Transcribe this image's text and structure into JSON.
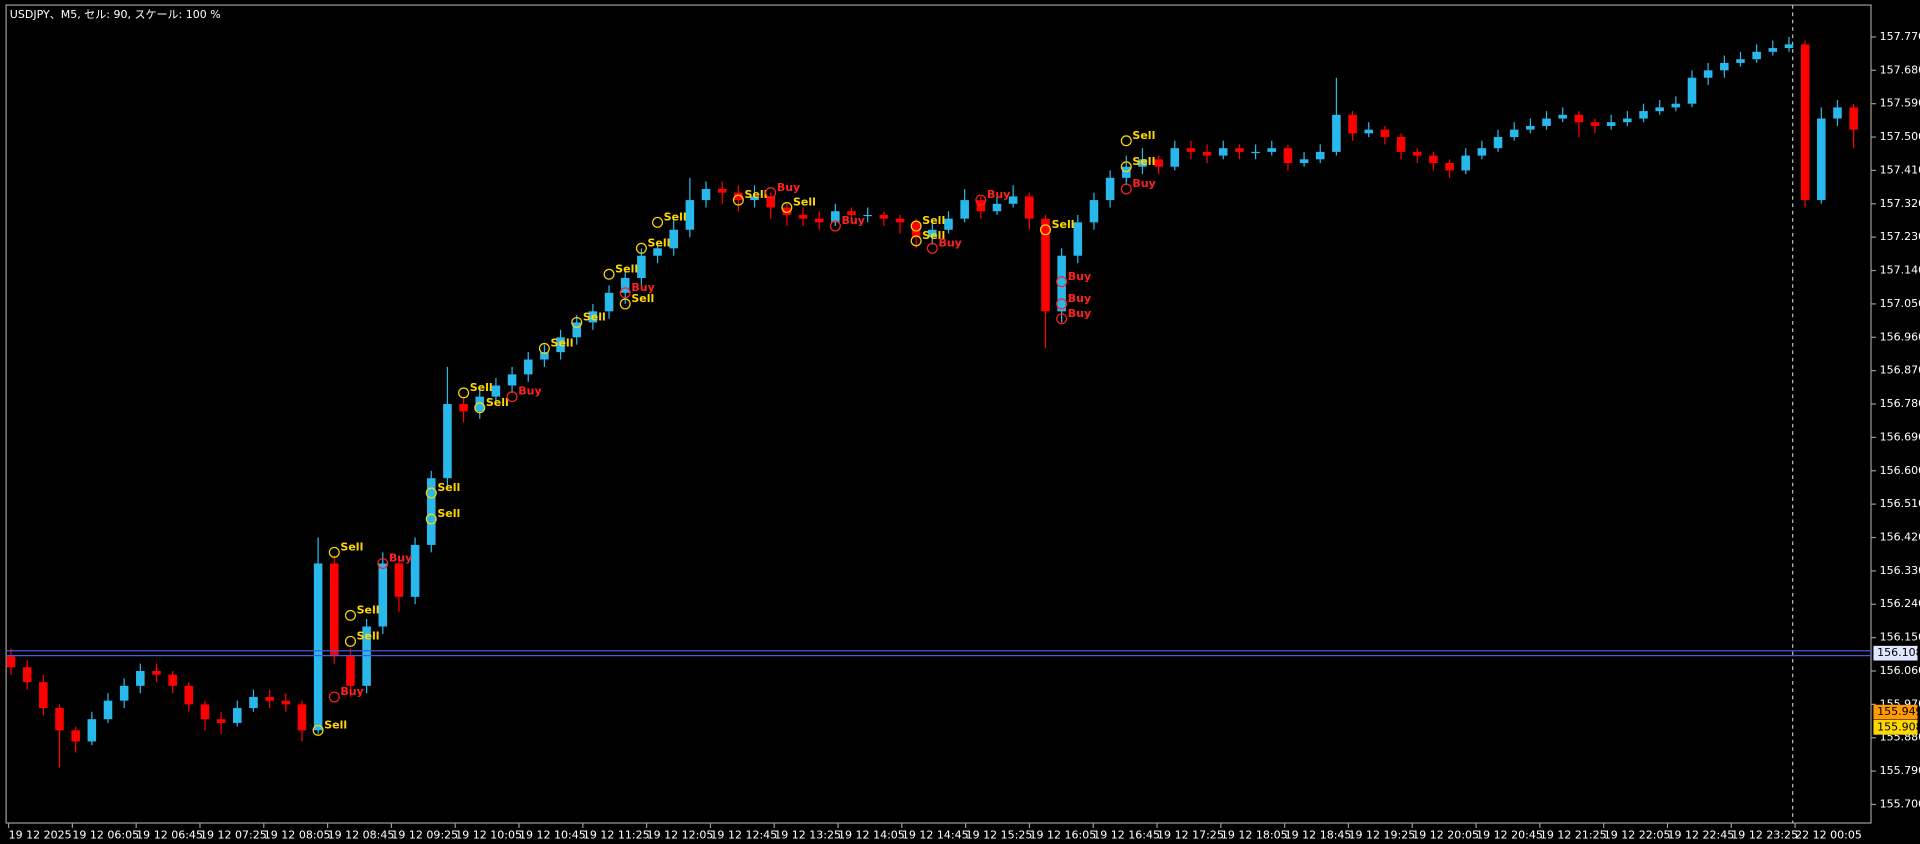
{
  "chart_data": {
    "type": "candlestick",
    "title": "USDJPY、M5, セル: 90, スケール: 100 %",
    "up_color": "#29b8ec",
    "down_color": "#ff0000",
    "ylim": [
      155.65,
      157.856
    ],
    "yticks": [
      {
        "value": 155.7,
        "label": "155.700"
      },
      {
        "value": 155.79,
        "label": "155.790"
      },
      {
        "value": 155.88,
        "label": "155.880"
      },
      {
        "value": 155.97,
        "label": "155.970"
      },
      {
        "value": 156.06,
        "label": "156.060"
      },
      {
        "value": 156.15,
        "label": "156.150"
      },
      {
        "value": 156.24,
        "label": "156.240"
      },
      {
        "value": 156.33,
        "label": "156.330"
      },
      {
        "value": 156.42,
        "label": "156.420"
      },
      {
        "value": 156.51,
        "label": "156.510"
      },
      {
        "value": 156.6,
        "label": "156.600"
      },
      {
        "value": 156.69,
        "label": "156.690"
      },
      {
        "value": 156.78,
        "label": "156.780"
      },
      {
        "value": 156.87,
        "label": "156.870"
      },
      {
        "value": 156.96,
        "label": "156.960"
      },
      {
        "value": 157.05,
        "label": "157.050"
      },
      {
        "value": 157.14,
        "label": "157.140"
      },
      {
        "value": 157.23,
        "label": "157.230"
      },
      {
        "value": 157.32,
        "label": "157.320"
      },
      {
        "value": 157.41,
        "label": "157.410"
      },
      {
        "value": 157.5,
        "label": "157.500"
      },
      {
        "value": 157.59,
        "label": "157.590"
      },
      {
        "value": 157.68,
        "label": "157.680"
      },
      {
        "value": 157.77,
        "label": "157.770"
      }
    ],
    "xlabels": [
      "19 12 2025",
      "19 12 06:05",
      "19 12 06:45",
      "19 12 07:25",
      "19 12 08:05",
      "19 12 08:45",
      "19 12 09:25",
      "19 12 10:05",
      "19 12 10:45",
      "19 12 11:25",
      "19 12 12:05",
      "19 12 12:45",
      "19 12 13:25",
      "19 12 14:05",
      "19 12 14:45",
      "19 12 15:25",
      "19 12 16:05",
      "19 12 16:45",
      "19 12 17:25",
      "19 12 18:05",
      "19 12 18:45",
      "19 12 19:25",
      "19 12 20:05",
      "19 12 20:45",
      "19 12 21:25",
      "19 12 22:05",
      "19 12 22:45",
      "19 12 23:25",
      "22 12 00:05"
    ],
    "markers": [
      {
        "value": 156.108,
        "color": "#dfe6ff"
      },
      {
        "value": 155.949,
        "color": "#ff9a00"
      },
      {
        "value": 155.908,
        "color": "#ffd700"
      }
    ],
    "ohlc": [
      [
        156.1,
        156.12,
        156.05,
        156.07
      ],
      [
        156.07,
        156.09,
        156.01,
        156.03
      ],
      [
        156.03,
        156.05,
        155.94,
        155.96
      ],
      [
        155.96,
        155.97,
        155.8,
        155.9
      ],
      [
        155.9,
        155.91,
        155.84,
        155.87
      ],
      [
        155.87,
        155.95,
        155.86,
        155.93
      ],
      [
        155.93,
        156.0,
        155.92,
        155.98
      ],
      [
        155.98,
        156.04,
        155.96,
        156.02
      ],
      [
        156.02,
        156.08,
        156.0,
        156.06
      ],
      [
        156.06,
        156.08,
        156.03,
        156.05
      ],
      [
        156.05,
        156.06,
        156.0,
        156.02
      ],
      [
        156.02,
        156.03,
        155.95,
        155.97
      ],
      [
        155.97,
        155.98,
        155.9,
        155.93
      ],
      [
        155.93,
        155.95,
        155.89,
        155.92
      ],
      [
        155.92,
        155.98,
        155.91,
        155.96
      ],
      [
        155.96,
        156.01,
        155.95,
        155.99
      ],
      [
        155.99,
        156.01,
        155.96,
        155.98
      ],
      [
        155.98,
        156.0,
        155.95,
        155.97
      ],
      [
        155.97,
        155.98,
        155.87,
        155.9
      ],
      [
        155.9,
        156.42,
        155.89,
        156.35
      ],
      [
        156.35,
        156.37,
        156.08,
        156.1
      ],
      [
        156.1,
        156.12,
        155.99,
        156.02
      ],
      [
        156.02,
        156.2,
        156.0,
        156.18
      ],
      [
        156.18,
        156.38,
        156.16,
        156.35
      ],
      [
        156.35,
        156.36,
        156.22,
        156.26
      ],
      [
        156.26,
        156.42,
        156.24,
        156.4
      ],
      [
        156.4,
        156.6,
        156.38,
        156.58
      ],
      [
        156.58,
        156.88,
        156.56,
        156.78
      ],
      [
        156.78,
        156.8,
        156.73,
        156.76
      ],
      [
        156.76,
        156.82,
        156.74,
        156.8
      ],
      [
        156.8,
        156.85,
        156.78,
        156.83
      ],
      [
        156.83,
        156.88,
        156.81,
        156.86
      ],
      [
        156.86,
        156.92,
        156.84,
        156.9
      ],
      [
        156.9,
        156.94,
        156.88,
        156.92
      ],
      [
        156.92,
        156.98,
        156.9,
        156.96
      ],
      [
        156.96,
        157.02,
        156.94,
        157.0
      ],
      [
        157.0,
        157.05,
        156.98,
        157.03
      ],
      [
        157.03,
        157.1,
        157.01,
        157.08
      ],
      [
        157.08,
        157.14,
        157.05,
        157.12
      ],
      [
        157.12,
        157.2,
        157.1,
        157.18
      ],
      [
        157.18,
        157.22,
        157.16,
        157.2
      ],
      [
        157.2,
        157.28,
        157.18,
        157.25
      ],
      [
        157.25,
        157.39,
        157.23,
        157.33
      ],
      [
        157.33,
        157.38,
        157.31,
        157.36
      ],
      [
        157.36,
        157.38,
        157.32,
        157.35
      ],
      [
        157.35,
        157.37,
        157.3,
        157.33
      ],
      [
        157.33,
        157.37,
        157.31,
        157.34
      ],
      [
        157.34,
        157.35,
        157.28,
        157.31
      ],
      [
        157.31,
        157.32,
        157.26,
        157.29
      ],
      [
        157.29,
        157.31,
        157.26,
        157.28
      ],
      [
        157.28,
        157.3,
        157.25,
        157.27
      ],
      [
        157.27,
        157.32,
        157.26,
        157.3
      ],
      [
        157.3,
        157.31,
        157.27,
        157.29
      ],
      [
        157.29,
        157.31,
        157.27,
        157.29
      ],
      [
        157.29,
        157.3,
        157.26,
        157.28
      ],
      [
        157.28,
        157.29,
        157.24,
        157.27
      ],
      [
        157.27,
        157.28,
        157.2,
        157.23
      ],
      [
        157.23,
        157.27,
        157.21,
        157.25
      ],
      [
        157.25,
        157.3,
        157.24,
        157.28
      ],
      [
        157.28,
        157.36,
        157.27,
        157.33
      ],
      [
        157.33,
        157.34,
        157.28,
        157.3
      ],
      [
        157.3,
        157.34,
        157.29,
        157.32
      ],
      [
        157.32,
        157.37,
        157.31,
        157.34
      ],
      [
        157.34,
        157.35,
        157.25,
        157.28
      ],
      [
        157.28,
        157.29,
        156.93,
        157.03
      ],
      [
        157.03,
        157.2,
        157.0,
        157.18
      ],
      [
        157.18,
        157.29,
        157.16,
        157.27
      ],
      [
        157.27,
        157.35,
        157.25,
        157.33
      ],
      [
        157.33,
        157.41,
        157.31,
        157.39
      ],
      [
        157.39,
        157.45,
        157.37,
        157.42
      ],
      [
        157.42,
        157.47,
        157.4,
        157.44
      ],
      [
        157.44,
        157.45,
        157.4,
        157.42
      ],
      [
        157.42,
        157.49,
        157.41,
        157.47
      ],
      [
        157.47,
        157.49,
        157.44,
        157.46
      ],
      [
        157.46,
        157.48,
        157.43,
        157.45
      ],
      [
        157.45,
        157.49,
        157.44,
        157.47
      ],
      [
        157.47,
        157.48,
        157.44,
        157.46
      ],
      [
        157.46,
        157.48,
        157.44,
        157.46
      ],
      [
        157.46,
        157.49,
        157.45,
        157.47
      ],
      [
        157.47,
        157.48,
        157.41,
        157.43
      ],
      [
        157.43,
        157.46,
        157.42,
        157.44
      ],
      [
        157.44,
        157.48,
        157.43,
        157.46
      ],
      [
        157.46,
        157.66,
        157.45,
        157.56
      ],
      [
        157.56,
        157.57,
        157.49,
        157.51
      ],
      [
        157.51,
        157.54,
        157.5,
        157.52
      ],
      [
        157.52,
        157.53,
        157.48,
        157.5
      ],
      [
        157.5,
        157.51,
        157.44,
        157.46
      ],
      [
        157.46,
        157.47,
        157.43,
        157.45
      ],
      [
        157.45,
        157.46,
        157.41,
        157.43
      ],
      [
        157.43,
        157.44,
        157.39,
        157.41
      ],
      [
        157.41,
        157.47,
        157.4,
        157.45
      ],
      [
        157.45,
        157.49,
        157.44,
        157.47
      ],
      [
        157.47,
        157.52,
        157.46,
        157.5
      ],
      [
        157.5,
        157.54,
        157.49,
        157.52
      ],
      [
        157.52,
        157.55,
        157.51,
        157.53
      ],
      [
        157.53,
        157.57,
        157.52,
        157.55
      ],
      [
        157.55,
        157.58,
        157.54,
        157.56
      ],
      [
        157.56,
        157.57,
        157.5,
        157.54
      ],
      [
        157.54,
        157.55,
        157.51,
        157.53
      ],
      [
        157.53,
        157.56,
        157.52,
        157.54
      ],
      [
        157.54,
        157.57,
        157.53,
        157.55
      ],
      [
        157.55,
        157.59,
        157.54,
        157.57
      ],
      [
        157.57,
        157.6,
        157.56,
        157.58
      ],
      [
        157.58,
        157.61,
        157.57,
        157.59
      ],
      [
        157.59,
        157.68,
        157.58,
        157.66
      ],
      [
        157.66,
        157.7,
        157.64,
        157.68
      ],
      [
        157.68,
        157.72,
        157.66,
        157.7
      ],
      [
        157.7,
        157.73,
        157.69,
        157.71
      ],
      [
        157.71,
        157.75,
        157.7,
        157.73
      ],
      [
        157.73,
        157.76,
        157.72,
        157.74
      ],
      [
        157.74,
        157.77,
        157.73,
        157.75
      ],
      [
        157.75,
        157.76,
        157.31,
        157.33
      ],
      [
        157.33,
        157.58,
        157.32,
        157.55
      ],
      [
        157.55,
        157.6,
        157.53,
        157.58
      ],
      [
        157.58,
        157.59,
        157.47,
        157.52
      ]
    ],
    "annotations": [
      {
        "text": "Sell",
        "candle": 19,
        "price": 155.9,
        "color": "#ffd700"
      },
      {
        "text": "Sell",
        "candle": 20,
        "price": 156.38,
        "color": "#ffd700"
      },
      {
        "text": "Sell",
        "candle": 21,
        "price": 156.21,
        "color": "#ffd700"
      },
      {
        "text": "Sell",
        "candle": 21,
        "price": 156.14,
        "color": "#ffd700"
      },
      {
        "text": "Buy",
        "candle": 20,
        "price": 155.99,
        "color": "#ff2020"
      },
      {
        "text": "Buy",
        "candle": 23,
        "price": 156.35,
        "color": "#ff2020"
      },
      {
        "text": "Sell",
        "candle": 26,
        "price": 156.54,
        "color": "#ffd700"
      },
      {
        "text": "Sell",
        "candle": 26,
        "price": 156.47,
        "color": "#ffd700"
      },
      {
        "text": "Sell",
        "candle": 28,
        "price": 156.81,
        "color": "#ffd700"
      },
      {
        "text": "Sell",
        "candle": 29,
        "price": 156.77,
        "color": "#ffd700"
      },
      {
        "text": "Buy",
        "candle": 31,
        "price": 156.8,
        "color": "#ff2020"
      },
      {
        "text": "Sell",
        "candle": 33,
        "price": 156.93,
        "color": "#ffd700"
      },
      {
        "text": "Sell",
        "candle": 35,
        "price": 157.0,
        "color": "#ffd700"
      },
      {
        "text": "Sell",
        "candle": 37,
        "price": 157.13,
        "color": "#ffd700"
      },
      {
        "text": "Buy",
        "candle": 38,
        "price": 157.08,
        "color": "#ff2020"
      },
      {
        "text": "Sell",
        "candle": 38,
        "price": 157.05,
        "color": "#ffd700"
      },
      {
        "text": "Sell",
        "candle": 40,
        "price": 157.27,
        "color": "#ffd700"
      },
      {
        "text": "Sell",
        "candle": 39,
        "price": 157.2,
        "color": "#ffd700"
      },
      {
        "text": "Sell",
        "candle": 45,
        "price": 157.33,
        "color": "#ffd700"
      },
      {
        "text": "Buy",
        "candle": 47,
        "price": 157.35,
        "color": "#ff2020"
      },
      {
        "text": "Sell",
        "candle": 48,
        "price": 157.31,
        "color": "#ffd700"
      },
      {
        "text": "Buy",
        "candle": 51,
        "price": 157.26,
        "color": "#ff2020"
      },
      {
        "text": "Sell",
        "candle": 56,
        "price": 157.26,
        "color": "#ffd700"
      },
      {
        "text": "Sell",
        "candle": 56,
        "price": 157.22,
        "color": "#ffd700"
      },
      {
        "text": "Buy",
        "candle": 57,
        "price": 157.2,
        "color": "#ff2020"
      },
      {
        "text": "Buy",
        "candle": 60,
        "price": 157.33,
        "color": "#ff2020"
      },
      {
        "text": "Sell",
        "candle": 64,
        "price": 157.25,
        "color": "#ffd700"
      },
      {
        "text": "Buy",
        "candle": 65,
        "price": 157.11,
        "color": "#ff2020"
      },
      {
        "text": "Buy",
        "candle": 65,
        "price": 157.05,
        "color": "#ff2020"
      },
      {
        "text": "Buy",
        "candle": 65,
        "price": 157.01,
        "color": "#ff2020"
      },
      {
        "text": "Sell",
        "candle": 69,
        "price": 157.49,
        "color": "#ffd700"
      },
      {
        "text": "Sell",
        "candle": 69,
        "price": 157.42,
        "color": "#ffd700"
      },
      {
        "text": "Buy",
        "candle": 69,
        "price": 157.36,
        "color": "#ff2020"
      }
    ]
  }
}
